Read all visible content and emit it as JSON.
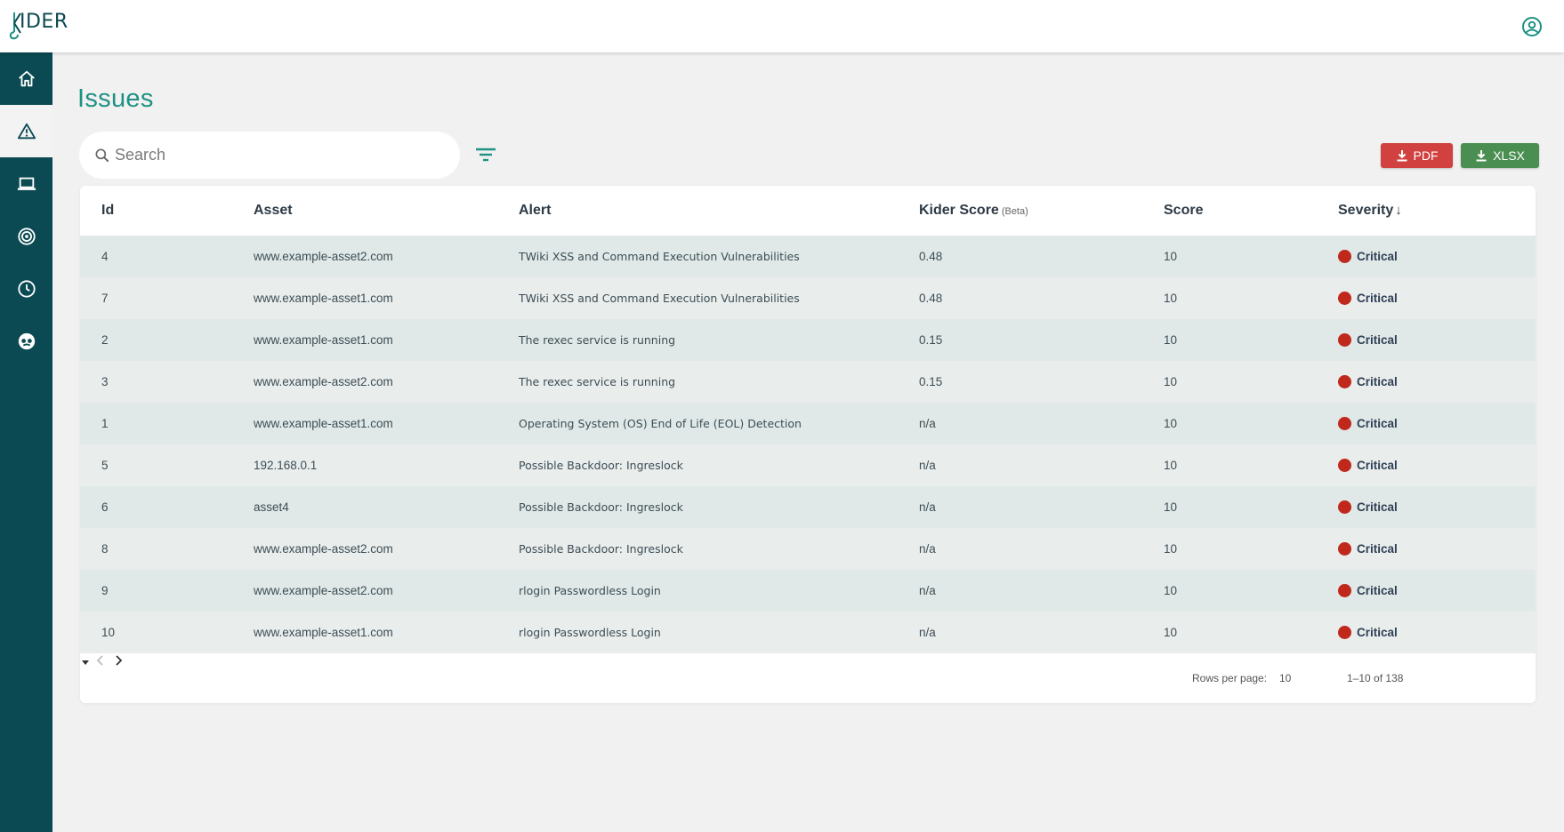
{
  "app": {
    "logo_text": "IDER",
    "logo_full": "KIDER"
  },
  "page": {
    "title": "Issues"
  },
  "search": {
    "placeholder": "Search"
  },
  "export": {
    "pdf_label": "PDF",
    "xlsx_label": "XLSX"
  },
  "colors": {
    "primary": "#0b4a52",
    "accent": "#1e9184",
    "pdf": "#d0413f",
    "xlsx": "#4a8f51",
    "critical": "#c0281c"
  },
  "sidebar": {
    "items": [
      {
        "icon": "home-icon",
        "active": false
      },
      {
        "icon": "warning-icon",
        "active": true
      },
      {
        "icon": "laptop-icon",
        "active": false
      },
      {
        "icon": "target-icon",
        "active": false
      },
      {
        "icon": "clock-icon",
        "active": false
      },
      {
        "icon": "spy-icon",
        "active": false
      }
    ]
  },
  "table": {
    "headers": {
      "id": "Id",
      "asset": "Asset",
      "alert": "Alert",
      "kider_score": "Kider Score",
      "kider_beta": "(Beta)",
      "score": "Score",
      "severity": "Severity"
    },
    "rows": [
      {
        "id": "4",
        "asset": "www.example-asset2.com",
        "alert": "TWiki XSS and Command Execution Vulnerabilities",
        "kider_score": "0.48",
        "score": "10",
        "severity": "Critical"
      },
      {
        "id": "7",
        "asset": "www.example-asset1.com",
        "alert": "TWiki XSS and Command Execution Vulnerabilities",
        "kider_score": "0.48",
        "score": "10",
        "severity": "Critical"
      },
      {
        "id": "2",
        "asset": "www.example-asset1.com",
        "alert": "The rexec service is running",
        "kider_score": "0.15",
        "score": "10",
        "severity": "Critical"
      },
      {
        "id": "3",
        "asset": "www.example-asset2.com",
        "alert": "The rexec service is running",
        "kider_score": "0.15",
        "score": "10",
        "severity": "Critical"
      },
      {
        "id": "1",
        "asset": "www.example-asset1.com",
        "alert": "Operating System (OS) End of Life (EOL) Detection",
        "kider_score": "n/a",
        "score": "10",
        "severity": "Critical"
      },
      {
        "id": "5",
        "asset": "192.168.0.1",
        "alert": "Possible Backdoor: Ingreslock",
        "kider_score": "n/a",
        "score": "10",
        "severity": "Critical"
      },
      {
        "id": "6",
        "asset": "asset4",
        "alert": "Possible Backdoor: Ingreslock",
        "kider_score": "n/a",
        "score": "10",
        "severity": "Critical"
      },
      {
        "id": "8",
        "asset": "www.example-asset2.com",
        "alert": "Possible Backdoor: Ingreslock",
        "kider_score": "n/a",
        "score": "10",
        "severity": "Critical"
      },
      {
        "id": "9",
        "asset": "www.example-asset2.com",
        "alert": "rlogin Passwordless Login",
        "kider_score": "n/a",
        "score": "10",
        "severity": "Critical"
      },
      {
        "id": "10",
        "asset": "www.example-asset1.com",
        "alert": "rlogin Passwordless Login",
        "kider_score": "n/a",
        "score": "10",
        "severity": "Critical"
      }
    ]
  },
  "pagination": {
    "rows_per_page_label": "Rows per page:",
    "rows_per_page_value": "10",
    "range": "1–10 of 138"
  }
}
